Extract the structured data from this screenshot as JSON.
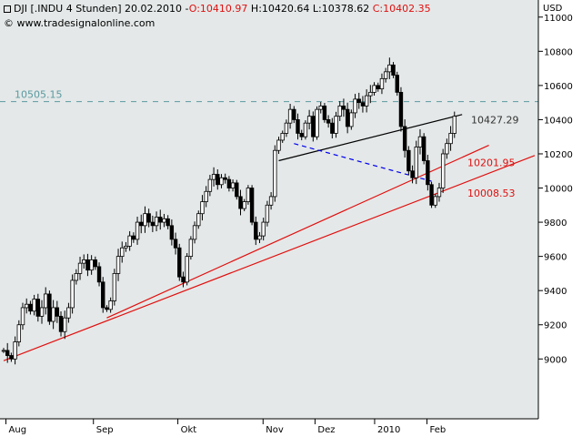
{
  "header": {
    "symbol": "DJI [.INDU  4 Stunden]",
    "date": "20.02.2010",
    "open": "O:10410.97",
    "high": "H:10420.64",
    "low": "L:10378.62",
    "close": "C:10402.35",
    "copyright": "© www.tradesignalonline.com"
  },
  "colors": {
    "background": "#e4e8e8",
    "red": "#e01010",
    "blue": "#0000ee",
    "teal": "#5a9aa0",
    "candle": "#000000"
  },
  "chart_data": {
    "type": "candlestick",
    "currency_label": "USD",
    "ylim": [
      8650,
      11100
    ],
    "y_ticks": [
      9000,
      9200,
      9400,
      9600,
      9800,
      10000,
      10200,
      10400,
      10600,
      10800,
      11000
    ],
    "x_labels": [
      {
        "label": "Aug",
        "x": 0.6
      },
      {
        "label": "Sep",
        "x": 23.5
      },
      {
        "label": "Okt",
        "x": 45.6
      },
      {
        "label": "Nov",
        "x": 67.9
      },
      {
        "label": "Dez",
        "x": 81.5
      },
      {
        "label": "2010",
        "x": 97.1
      },
      {
        "label": "Feb",
        "x": 110.8
      }
    ],
    "xlim": [
      0,
      139
    ],
    "close_series": [
      [
        0,
        9050
      ],
      [
        1,
        9020
      ],
      [
        2,
        9000
      ],
      [
        3,
        9100
      ],
      [
        4,
        9200
      ],
      [
        5,
        9300
      ],
      [
        6,
        9320
      ],
      [
        7,
        9280
      ],
      [
        8,
        9350
      ],
      [
        9,
        9250
      ],
      [
        10,
        9300
      ],
      [
        11,
        9380
      ],
      [
        12,
        9220
      ],
      [
        13,
        9300
      ],
      [
        14,
        9250
      ],
      [
        15,
        9160
      ],
      [
        16,
        9240
      ],
      [
        17,
        9300
      ],
      [
        18,
        9460
      ],
      [
        19,
        9500
      ],
      [
        20,
        9560
      ],
      [
        21,
        9580
      ],
      [
        22,
        9520
      ],
      [
        23,
        9580
      ],
      [
        24,
        9540
      ],
      [
        25,
        9450
      ],
      [
        26,
        9300
      ],
      [
        27,
        9290
      ],
      [
        28,
        9340
      ],
      [
        29,
        9500
      ],
      [
        30,
        9600
      ],
      [
        31,
        9650
      ],
      [
        32,
        9660
      ],
      [
        33,
        9720
      ],
      [
        34,
        9700
      ],
      [
        35,
        9800
      ],
      [
        36,
        9780
      ],
      [
        37,
        9850
      ],
      [
        38,
        9800
      ],
      [
        39,
        9780
      ],
      [
        40,
        9830
      ],
      [
        41,
        9800
      ],
      [
        42,
        9820
      ],
      [
        43,
        9780
      ],
      [
        44,
        9700
      ],
      [
        45,
        9650
      ],
      [
        46,
        9480
      ],
      [
        47,
        9450
      ],
      [
        48,
        9600
      ],
      [
        49,
        9700
      ],
      [
        50,
        9780
      ],
      [
        51,
        9850
      ],
      [
        52,
        9920
      ],
      [
        53,
        9980
      ],
      [
        54,
        10050
      ],
      [
        55,
        10080
      ],
      [
        56,
        10020
      ],
      [
        57,
        10060
      ],
      [
        58,
        10050
      ],
      [
        59,
        10000
      ],
      [
        60,
        10030
      ],
      [
        61,
        9950
      ],
      [
        62,
        9880
      ],
      [
        63,
        9920
      ],
      [
        64,
        10000
      ],
      [
        65,
        9800
      ],
      [
        66,
        9700
      ],
      [
        67,
        9720
      ],
      [
        68,
        9800
      ],
      [
        69,
        9900
      ],
      [
        70,
        9950
      ],
      [
        71,
        10220
      ],
      [
        72,
        10280
      ],
      [
        73,
        10320
      ],
      [
        74,
        10380
      ],
      [
        75,
        10460
      ],
      [
        76,
        10400
      ],
      [
        77,
        10320
      ],
      [
        78,
        10300
      ],
      [
        79,
        10380
      ],
      [
        80,
        10420
      ],
      [
        81,
        10300
      ],
      [
        82,
        10460
      ],
      [
        83,
        10480
      ],
      [
        84,
        10400
      ],
      [
        85,
        10380
      ],
      [
        86,
        10320
      ],
      [
        87,
        10420
      ],
      [
        88,
        10480
      ],
      [
        89,
        10460
      ],
      [
        90,
        10360
      ],
      [
        91,
        10440
      ],
      [
        92,
        10520
      ],
      [
        93,
        10500
      ],
      [
        94,
        10480
      ],
      [
        95,
        10540
      ],
      [
        96,
        10560
      ],
      [
        97,
        10600
      ],
      [
        98,
        10580
      ],
      [
        99,
        10640
      ],
      [
        100,
        10680
      ],
      [
        101,
        10720
      ],
      [
        102,
        10660
      ],
      [
        103,
        10560
      ],
      [
        104,
        10360
      ],
      [
        105,
        10220
      ],
      [
        106,
        10100
      ],
      [
        107,
        10060
      ],
      [
        108,
        10240
      ],
      [
        109,
        10300
      ],
      [
        110,
        10160
      ],
      [
        111,
        10020
      ],
      [
        112,
        9900
      ],
      [
        113,
        9950
      ],
      [
        114,
        10000
      ],
      [
        115,
        10200
      ],
      [
        116,
        10260
      ],
      [
        117,
        10320
      ],
      [
        118,
        10420
      ]
    ],
    "lines": [
      {
        "name": "upper-red-trendline",
        "color": "#e01010",
        "points": [
          [
            0,
            8990
          ],
          [
            139,
            10190
          ]
        ]
      },
      {
        "name": "lower-red-trendline",
        "color": "#e01010",
        "points": [
          [
            27,
            9240
          ],
          [
            127,
            10250
          ]
        ]
      },
      {
        "name": "black-trendline",
        "color": "#000000",
        "points": [
          [
            72,
            10160
          ],
          [
            120,
            10430
          ]
        ]
      },
      {
        "name": "blue-dashed-line",
        "color": "#0000ee",
        "dashed": true,
        "points": [
          [
            76,
            10260
          ],
          [
            112,
            10040
          ]
        ]
      }
    ],
    "levels": [
      {
        "value": 10505.15,
        "label": "10505.15",
        "color": "#5a9aa0",
        "dashed": true
      }
    ],
    "annotations": [
      {
        "label": "10427.29",
        "value": 10400,
        "color": "#333333"
      },
      {
        "label": "10201.95",
        "value": 10150,
        "color": "#e01010"
      },
      {
        "label": "10008.53",
        "value": 9970,
        "color": "#e01010"
      }
    ]
  }
}
